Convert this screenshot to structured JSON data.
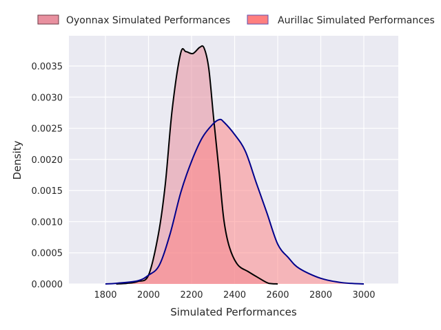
{
  "chart_data": {
    "type": "area",
    "title": "",
    "xlabel": "Simulated Performances",
    "ylabel": "Density",
    "xlim": [
      1630,
      3160
    ],
    "ylim": [
      0,
      0.00395
    ],
    "xticks": [
      "1800",
      "2000",
      "2200",
      "2400",
      "2600",
      "2800",
      "3000"
    ],
    "xtick_values": [
      1800,
      2000,
      2200,
      2400,
      2600,
      2800,
      3000
    ],
    "yticks": [
      "0.0000",
      "0.0005",
      "0.0010",
      "0.0015",
      "0.0020",
      "0.0025",
      "0.0030",
      "0.0035"
    ],
    "ytick_values": [
      0,
      0.0005,
      0.001,
      0.0015,
      0.002,
      0.0025,
      0.003,
      0.0035
    ],
    "grid": true,
    "legend_placement": "top-center-outside",
    "series": [
      {
        "name": "Oyonnax Simulated Performances",
        "fill": "#e8909f",
        "line": "#000000",
        "x": [
          1690,
          1850,
          1900,
          1950,
          2000,
          2046,
          2078,
          2110,
          2149,
          2174,
          2206,
          2238,
          2258,
          2280,
          2302,
          2328,
          2350,
          2376,
          2414,
          2462,
          2510,
          2558,
          2600,
          3090
        ],
        "y": [
          0,
          0,
          1e-05,
          4e-05,
          0.00014,
          0.0008,
          0.0016,
          0.0028,
          0.0037,
          0.00373,
          0.0037,
          0.0038,
          0.00379,
          0.00346,
          0.00268,
          0.0018,
          0.00103,
          0.00059,
          0.00031,
          0.0002,
          0.0001,
          1e-05,
          0,
          0
        ]
      },
      {
        "name": "Aurillac Simulated Performances",
        "fill": "#ff7f7f",
        "line": "#00008b",
        "x": [
          1690,
          1800,
          1850,
          1950,
          2000,
          2050,
          2100,
          2150,
          2200,
          2250,
          2300,
          2330,
          2350,
          2400,
          2450,
          2500,
          2550,
          2600,
          2650,
          2700,
          2800,
          2900,
          3000,
          3090
        ],
        "y": [
          0,
          0,
          1e-05,
          5e-05,
          0.00014,
          0.0003,
          0.0008,
          0.00147,
          0.00197,
          0.00235,
          0.00257,
          0.00264,
          0.0026,
          0.0024,
          0.00213,
          0.00163,
          0.00114,
          0.00064,
          0.00042,
          0.00025,
          9e-05,
          2e-05,
          0,
          0
        ]
      }
    ]
  }
}
